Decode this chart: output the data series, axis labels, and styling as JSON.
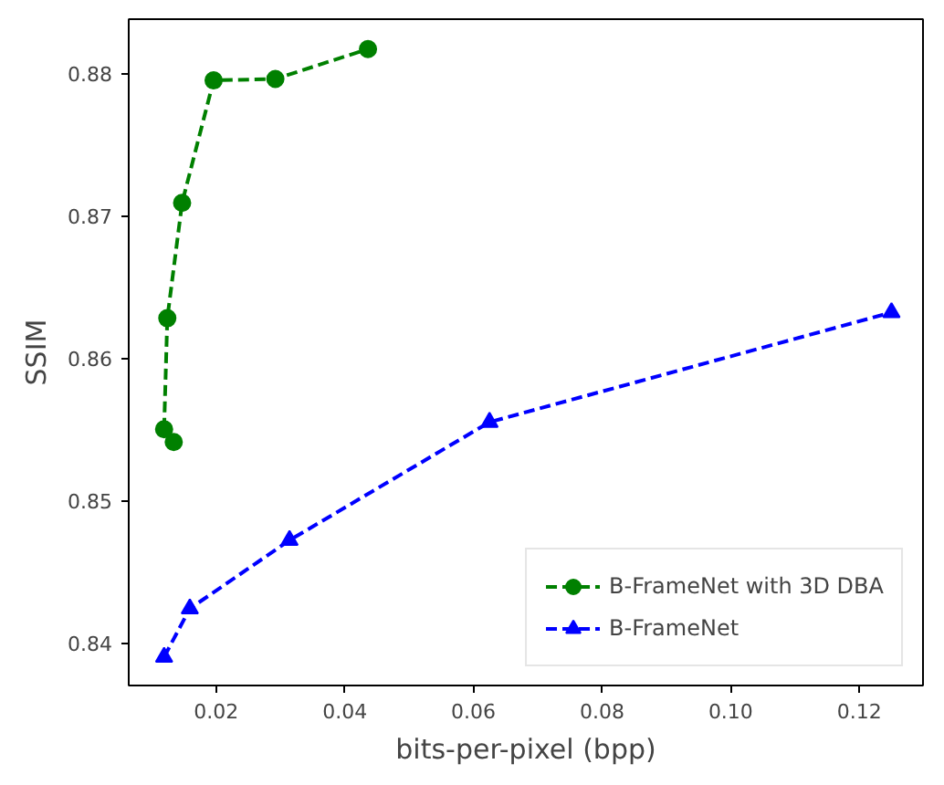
{
  "chart_data": {
    "type": "line",
    "xlabel": "bits-per-pixel (bpp)",
    "ylabel": "SSIM",
    "xlim": [
      0.0064,
      0.1299
    ],
    "ylim": [
      0.837,
      0.8838
    ],
    "xticks": [
      {
        "value": 0.02,
        "label": "0.02"
      },
      {
        "value": 0.04,
        "label": "0.04"
      },
      {
        "value": 0.06,
        "label": "0.06"
      },
      {
        "value": 0.08,
        "label": "0.08"
      },
      {
        "value": 0.1,
        "label": "0.10"
      },
      {
        "value": 0.12,
        "label": "0.12"
      }
    ],
    "yticks": [
      0.84,
      0.85,
      0.86,
      0.87,
      0.88
    ],
    "grid": false,
    "legend": "bottom right",
    "line_style": "dashed",
    "series": [
      {
        "name": "B-FrameNet with 3D DBA",
        "color": "#008000",
        "marker": "circle",
        "x": [
          0.0134,
          0.0119,
          0.0124,
          0.0147,
          0.0196,
          0.0292,
          0.0436
        ],
        "values": [
          0.8541,
          0.855,
          0.8628,
          0.8709,
          0.8795,
          0.8796,
          0.8817
        ]
      },
      {
        "name": "B-FrameNet",
        "color": "#0000ff",
        "marker": "triangle",
        "x": [
          0.0119,
          0.0159,
          0.0314,
          0.0625,
          0.125
        ],
        "values": [
          0.839,
          0.8424,
          0.8472,
          0.8555,
          0.8632
        ]
      }
    ]
  }
}
